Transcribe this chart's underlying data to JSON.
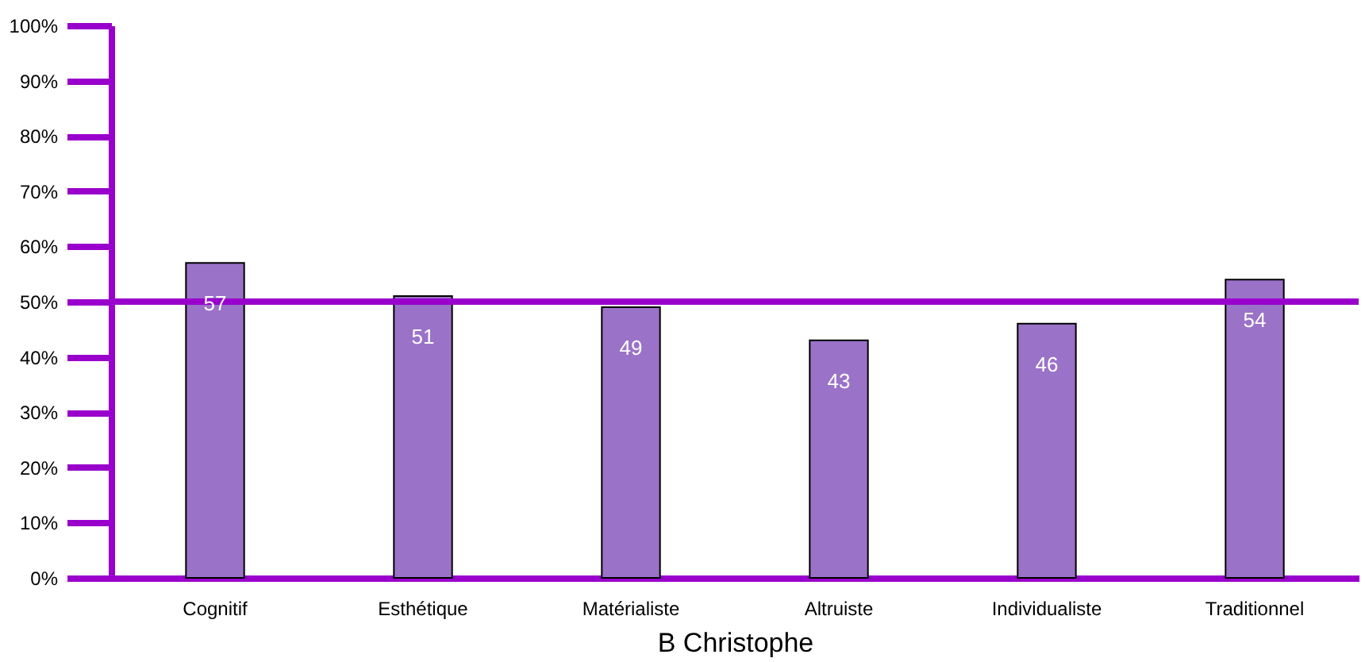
{
  "chart_data": {
    "type": "bar",
    "xlabel": "B Christophe",
    "categories": [
      "Cognitif",
      "Esthétique",
      "Matérialiste",
      "Altruiste",
      "Individualiste",
      "Traditionnel"
    ],
    "values": [
      57,
      51,
      49,
      43,
      46,
      54
    ],
    "color": "#9a72c8",
    "data_labels": true,
    "ylim": [
      0,
      100
    ],
    "yticks": [
      {
        "value": 0,
        "label": "0%"
      },
      {
        "value": 10,
        "label": "10%"
      },
      {
        "value": 20,
        "label": "20%"
      },
      {
        "value": 30,
        "label": "30%"
      },
      {
        "value": 40,
        "label": "40%"
      },
      {
        "value": 50,
        "label": "50%"
      },
      {
        "value": 60,
        "label": "60%"
      },
      {
        "value": 70,
        "label": "70%"
      },
      {
        "value": 80,
        "label": "80%"
      },
      {
        "value": 90,
        "label": "90%"
      },
      {
        "value": 100,
        "label": "100%"
      }
    ],
    "ref_lines": [
      {
        "axis": "y",
        "value": 50,
        "color": "#9900cc"
      }
    ]
  }
}
